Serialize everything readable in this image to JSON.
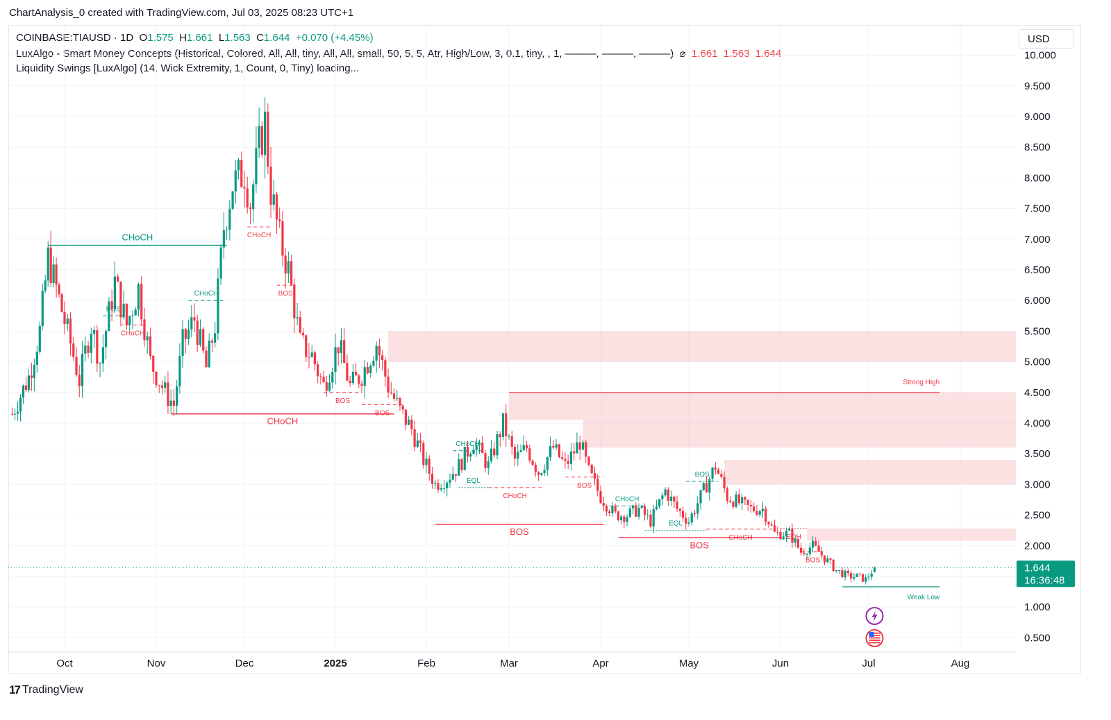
{
  "header": {
    "attribution": "ChartAnalysis_0 created with TradingView.com, Jul 03, 2025 08:23 UTC+1"
  },
  "legend": {
    "symbol": "COINBASE:TIAUSD · 1D",
    "o_label": "O",
    "o_value": "1.575",
    "h_label": "H",
    "h_value": "1.661",
    "l_label": "L",
    "l_value": "1.563",
    "c_label": "C",
    "c_value": "1.644",
    "change": "+0.070 (+4.45%)",
    "indicator1": "LuxAlgo - Smart Money Concepts (Historical, Colored, All, All, tiny, All, All, small, 50, 5, 5, Atr, High/Low, 3, 0.1, tiny, , 1, ———, ———, ———)",
    "indicator1_symbol": "⌀",
    "indicator1_values": [
      "1.661",
      "1.563",
      "1.644"
    ],
    "indicator2": "Liquidity Swings [LuxAlgo] (14, Wick Extremity, 1, Count, 0, Tiny) loading..."
  },
  "currency_button": "USD",
  "price_tag": {
    "price": "1.644",
    "countdown": "16:36:48"
  },
  "footer": {
    "logo": "17",
    "brand": "TradingView"
  },
  "colors": {
    "bull": "#089981",
    "bear": "#f23645",
    "zone": "#f7a9b0"
  },
  "chart_data": {
    "type": "candlestick",
    "y_axis": {
      "min": 0.5,
      "max": 10.0,
      "ticks": [
        "10.000",
        "9.500",
        "9.000",
        "8.500",
        "8.000",
        "7.500",
        "7.000",
        "6.500",
        "6.000",
        "5.500",
        "5.000",
        "4.500",
        "4.000",
        "3.500",
        "3.000",
        "2.500",
        "2.000",
        "1.000",
        "0.500"
      ]
    },
    "x_axis": {
      "labels": [
        {
          "label": "Oct",
          "date": "2024-10-01"
        },
        {
          "label": "Nov",
          "date": "2024-11-01"
        },
        {
          "label": "Dec",
          "date": "2024-12-01"
        },
        {
          "label": "2025",
          "date": "2025-01-01"
        },
        {
          "label": "Feb",
          "date": "2025-02-01"
        },
        {
          "label": "Mar",
          "date": "2025-03-01"
        },
        {
          "label": "Apr",
          "date": "2025-04-01"
        },
        {
          "label": "May",
          "date": "2025-05-01"
        },
        {
          "label": "Jun",
          "date": "2025-06-01"
        },
        {
          "label": "Jul",
          "date": "2025-07-01"
        },
        {
          "label": "Aug",
          "date": "2025-08-01"
        }
      ]
    },
    "last_price": 1.644,
    "close_path": [
      {
        "date": "2024-09-12",
        "close": 4.15
      },
      {
        "date": "2024-09-18",
        "close": 4.75
      },
      {
        "date": "2024-09-22",
        "close": 5.5
      },
      {
        "date": "2024-09-25",
        "close": 6.7
      },
      {
        "date": "2024-09-28",
        "close": 6.2
      },
      {
        "date": "2024-10-03",
        "close": 5.3
      },
      {
        "date": "2024-10-06",
        "close": 4.7
      },
      {
        "date": "2024-10-10",
        "close": 5.6
      },
      {
        "date": "2024-10-13",
        "close": 5.0
      },
      {
        "date": "2024-10-18",
        "close": 6.3
      },
      {
        "date": "2024-10-22",
        "close": 5.6
      },
      {
        "date": "2024-10-26",
        "close": 6.2
      },
      {
        "date": "2024-10-30",
        "close": 5.0
      },
      {
        "date": "2024-11-04",
        "close": 4.5
      },
      {
        "date": "2024-11-07",
        "close": 4.3
      },
      {
        "date": "2024-11-10",
        "close": 5.3
      },
      {
        "date": "2024-11-14",
        "close": 5.7
      },
      {
        "date": "2024-11-18",
        "close": 4.9
      },
      {
        "date": "2024-11-21",
        "close": 5.6
      },
      {
        "date": "2024-11-24",
        "close": 7.2
      },
      {
        "date": "2024-11-27",
        "close": 7.9
      },
      {
        "date": "2024-12-01",
        "close": 8.1
      },
      {
        "date": "2024-12-03",
        "close": 7.6
      },
      {
        "date": "2024-12-06",
        "close": 8.5
      },
      {
        "date": "2024-12-08",
        "close": 8.9
      },
      {
        "date": "2024-12-10",
        "close": 7.8
      },
      {
        "date": "2024-12-13",
        "close": 7.0
      },
      {
        "date": "2024-12-16",
        "close": 6.5
      },
      {
        "date": "2024-12-20",
        "close": 5.3
      },
      {
        "date": "2024-12-24",
        "close": 5.1
      },
      {
        "date": "2024-12-28",
        "close": 4.6
      },
      {
        "date": "2025-01-02",
        "close": 5.3
      },
      {
        "date": "2025-01-06",
        "close": 4.6
      },
      {
        "date": "2025-01-10",
        "close": 4.8
      },
      {
        "date": "2025-01-15",
        "close": 5.3
      },
      {
        "date": "2025-01-19",
        "close": 4.6
      },
      {
        "date": "2025-01-23",
        "close": 4.2
      },
      {
        "date": "2025-01-27",
        "close": 3.9
      },
      {
        "date": "2025-01-31",
        "close": 3.4
      },
      {
        "date": "2025-02-04",
        "close": 3.0
      },
      {
        "date": "2025-02-08",
        "close": 3.1
      },
      {
        "date": "2025-02-12",
        "close": 3.3
      },
      {
        "date": "2025-02-17",
        "close": 3.7
      },
      {
        "date": "2025-02-22",
        "close": 3.3
      },
      {
        "date": "2025-02-27",
        "close": 4.0
      },
      {
        "date": "2025-03-03",
        "close": 3.4
      },
      {
        "date": "2025-03-07",
        "close": 3.6
      },
      {
        "date": "2025-03-11",
        "close": 3.2
      },
      {
        "date": "2025-03-16",
        "close": 3.6
      },
      {
        "date": "2025-03-20",
        "close": 3.3
      },
      {
        "date": "2025-03-25",
        "close": 3.7
      },
      {
        "date": "2025-03-28",
        "close": 3.2
      },
      {
        "date": "2025-04-01",
        "close": 2.8
      },
      {
        "date": "2025-04-06",
        "close": 2.5
      },
      {
        "date": "2025-04-10",
        "close": 2.5
      },
      {
        "date": "2025-04-14",
        "close": 2.6
      },
      {
        "date": "2025-04-18",
        "close": 2.4
      },
      {
        "date": "2025-04-23",
        "close": 2.9
      },
      {
        "date": "2025-04-27",
        "close": 2.6
      },
      {
        "date": "2025-05-01",
        "close": 2.4
      },
      {
        "date": "2025-05-05",
        "close": 2.8
      },
      {
        "date": "2025-05-10",
        "close": 3.3
      },
      {
        "date": "2025-05-14",
        "close": 2.8
      },
      {
        "date": "2025-05-18",
        "close": 2.7
      },
      {
        "date": "2025-05-22",
        "close": 2.6
      },
      {
        "date": "2025-05-26",
        "close": 2.6
      },
      {
        "date": "2025-05-30",
        "close": 2.2
      },
      {
        "date": "2025-06-04",
        "close": 2.2
      },
      {
        "date": "2025-06-08",
        "close": 1.9
      },
      {
        "date": "2025-06-12",
        "close": 2.0
      },
      {
        "date": "2025-06-16",
        "close": 1.8
      },
      {
        "date": "2025-06-20",
        "close": 1.6
      },
      {
        "date": "2025-06-24",
        "close": 1.5
      },
      {
        "date": "2025-06-27",
        "close": 1.5
      },
      {
        "date": "2025-06-30",
        "close": 1.45
      },
      {
        "date": "2025-07-03",
        "close": 1.644
      }
    ],
    "zones": [
      {
        "from": "2025-01-19",
        "to": "2025-08-20",
        "top": 5.5,
        "bottom": 5.0
      },
      {
        "from": "2025-03-01",
        "to": "2025-08-20",
        "top": 4.5,
        "bottom": 4.05
      },
      {
        "from": "2025-03-26",
        "to": "2025-08-20",
        "top": 4.05,
        "bottom": 3.6
      },
      {
        "from": "2025-05-13",
        "to": "2025-08-20",
        "top": 3.4,
        "bottom": 3.0
      },
      {
        "from": "2025-06-10",
        "to": "2025-08-20",
        "top": 2.28,
        "bottom": 2.08
      }
    ],
    "structure": [
      {
        "label": "CHoCH",
        "kind": "bull",
        "from": "2024-09-25",
        "to": "2024-11-25",
        "y": 6.9
      },
      {
        "label": "BOS",
        "kind": "bull",
        "from": "2024-10-14",
        "to": "2024-10-21",
        "y": 5.75
      },
      {
        "label": "CHoCH",
        "kind": "bear",
        "from": "2024-10-20",
        "to": "2024-10-28",
        "y": 5.6
      },
      {
        "label": "CHoCH",
        "kind": "bull",
        "from": "2024-11-12",
        "to": "2024-11-24",
        "y": 6.0
      },
      {
        "label": "CHoCH",
        "kind": "bear",
        "from": "2024-12-02",
        "to": "2024-12-10",
        "y": 7.2
      },
      {
        "label": "BOS",
        "kind": "bear",
        "from": "2024-12-12",
        "to": "2024-12-18",
        "y": 6.25
      },
      {
        "label": "CHoCH",
        "kind": "bear",
        "from": "2024-11-06",
        "to": "2025-01-21",
        "y": 4.15
      },
      {
        "label": "BOS",
        "kind": "bear",
        "from": "2024-12-28",
        "to": "2025-01-10",
        "y": 4.5
      },
      {
        "label": "BOS",
        "kind": "bear",
        "from": "2025-01-10",
        "to": "2025-01-24",
        "y": 4.3
      },
      {
        "label": "CHoCH",
        "kind": "bull",
        "from": "2025-02-10",
        "to": "2025-02-20",
        "y": 3.55
      },
      {
        "label": "EQL",
        "kind": "bull",
        "from": "2025-02-12",
        "to": "2025-02-22",
        "y": 2.95
      },
      {
        "label": "CHoCH",
        "kind": "bear",
        "from": "2025-02-22",
        "to": "2025-03-12",
        "y": 2.95
      },
      {
        "label": "BOS",
        "kind": "bear",
        "from": "2025-02-04",
        "to": "2025-04-02",
        "y": 2.35
      },
      {
        "label": "BOS",
        "kind": "bear",
        "from": "2025-03-20",
        "to": "2025-04-02",
        "y": 3.12
      },
      {
        "label": "CHoCH",
        "kind": "bull",
        "from": "2025-04-04",
        "to": "2025-04-16",
        "y": 2.65
      },
      {
        "label": "EQL",
        "kind": "bull",
        "from": "2025-04-16",
        "to": "2025-05-07",
        "y": 2.25
      },
      {
        "label": "BOS",
        "kind": "bull",
        "from": "2025-04-30",
        "to": "2025-05-11",
        "y": 3.05
      },
      {
        "label": "BOS",
        "kind": "bear",
        "from": "2025-04-07",
        "to": "2025-06-01",
        "y": 2.13
      },
      {
        "label": "CHoCH",
        "kind": "bear",
        "from": "2025-05-07",
        "to": "2025-05-30",
        "y": 2.27
      },
      {
        "label": "EQH",
        "kind": "bear",
        "from": "2025-06-01",
        "to": "2025-06-10",
        "y": 2.28
      },
      {
        "label": "BOS",
        "kind": "bear",
        "from": "2025-06-08",
        "to": "2025-06-16",
        "y": 1.9
      }
    ],
    "swing_labels": [
      {
        "label": "Strong High",
        "kind": "bear",
        "from": "2025-03-01",
        "to": "2025-07-25",
        "y": 4.5
      },
      {
        "label": "Weak Low",
        "kind": "bull",
        "from": "2025-06-22",
        "to": "2025-07-25",
        "y": 1.33
      }
    ]
  }
}
